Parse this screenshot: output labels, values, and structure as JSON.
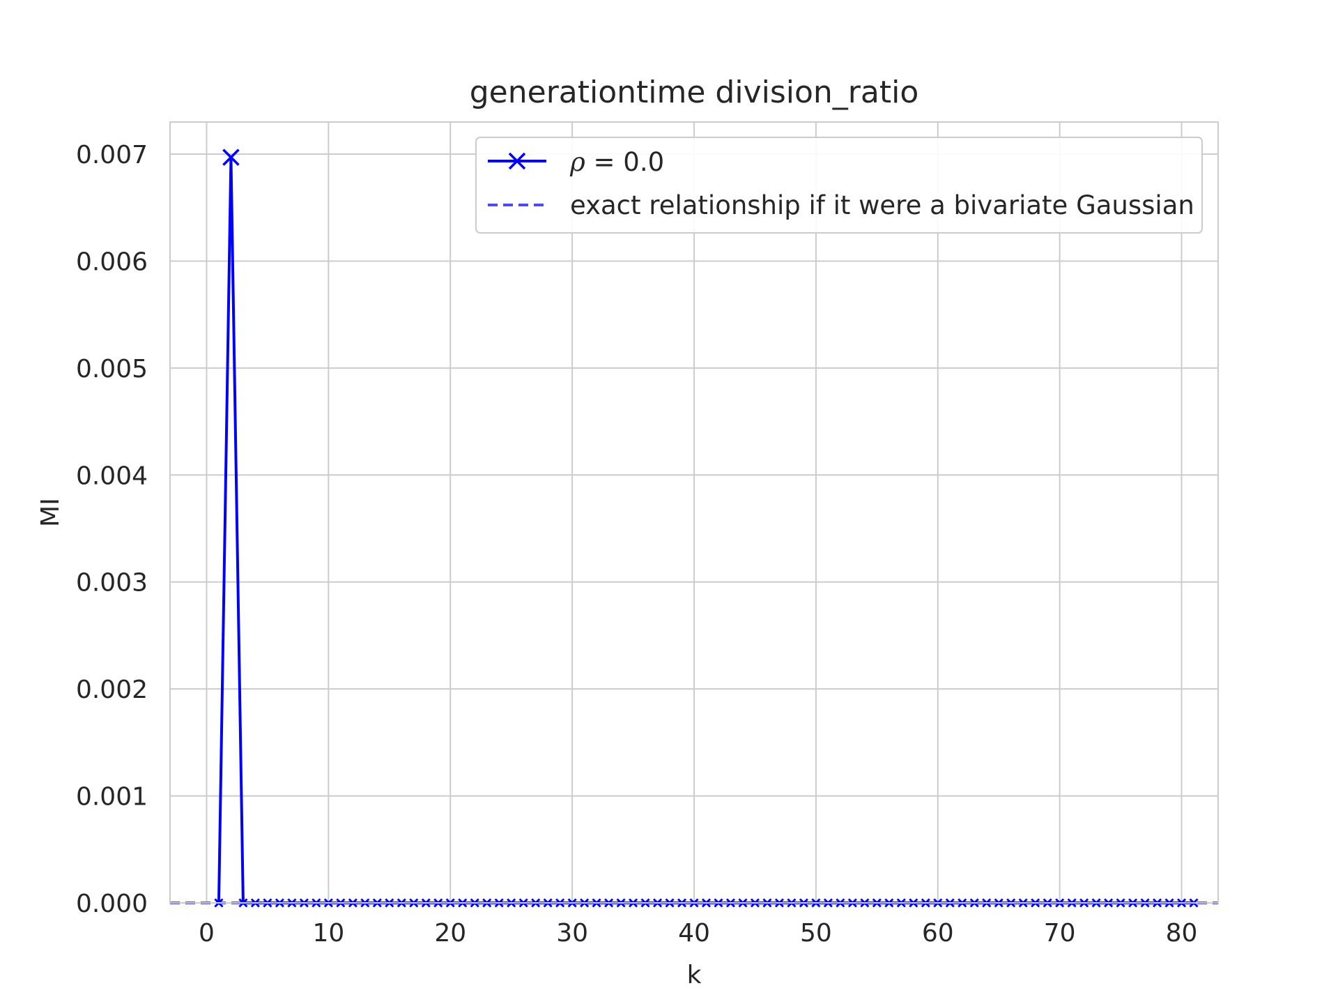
{
  "chart_data": {
    "type": "line",
    "title": "generationtime division_ratio",
    "xlabel": "k",
    "ylabel": "MI",
    "xlim": [
      -3,
      83
    ],
    "ylim": [
      0,
      0.0073
    ],
    "xticks": [
      0,
      10,
      20,
      30,
      40,
      50,
      60,
      70,
      80
    ],
    "xtick_labels": [
      "0",
      "10",
      "20",
      "30",
      "40",
      "50",
      "60",
      "70",
      "80"
    ],
    "yticks": [
      0,
      0.001,
      0.002,
      0.003,
      0.004,
      0.005,
      0.006,
      0.007
    ],
    "ytick_labels": [
      "0.000",
      "0.001",
      "0.002",
      "0.003",
      "0.004",
      "0.005",
      "0.006",
      "0.007"
    ],
    "grid": true,
    "legend": {
      "position": "top-right",
      "entries": [
        {
          "symbol": "ρ",
          "label_suffix": " = 0.0"
        },
        {
          "label": "exact relationship if it were a bivariate Gaussian"
        }
      ]
    },
    "series": [
      {
        "style": "solid-x",
        "color": "#0000ff",
        "x_start": 1,
        "x_end": 79,
        "values": [
          0,
          0.00697,
          0,
          0,
          0,
          0,
          0,
          0,
          0,
          0,
          0,
          0,
          0,
          0,
          0,
          0,
          0,
          0,
          0,
          0,
          0,
          0,
          0,
          0,
          0,
          0,
          0,
          0,
          0,
          0,
          0,
          0,
          0,
          0,
          0,
          0,
          0,
          0,
          0,
          0,
          0,
          0,
          0,
          0,
          0,
          0,
          0,
          0,
          0,
          0,
          0,
          0,
          0,
          0,
          0,
          0,
          0,
          0,
          0,
          0,
          0,
          0,
          0,
          0,
          0,
          0,
          0,
          0,
          0,
          0,
          0,
          0,
          0,
          0,
          0,
          0,
          0,
          0,
          0,
          0,
          0
        ]
      },
      {
        "style": "dashed",
        "color": "#4b4bf0",
        "x": [
          -3,
          83
        ],
        "values": [
          0,
          0
        ]
      }
    ]
  }
}
